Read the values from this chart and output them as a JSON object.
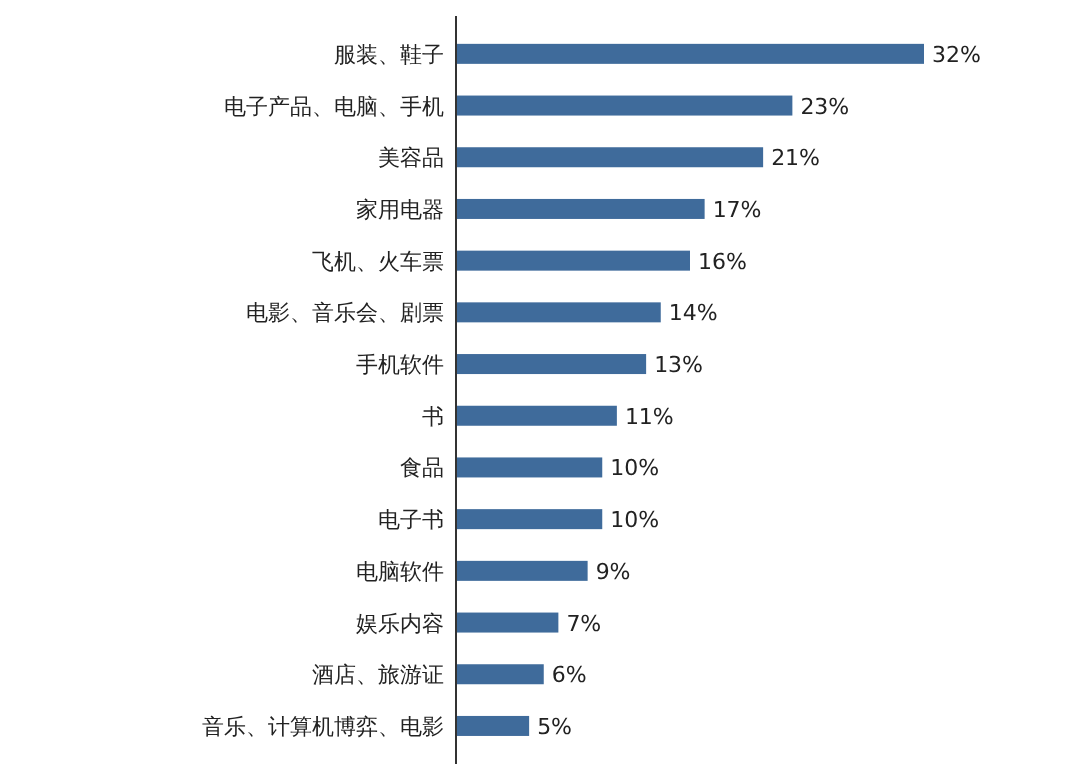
{
  "chart_data": {
    "type": "bar",
    "orientation": "horizontal",
    "color": "#3f6b9b",
    "categories": [
      "服装、鞋子",
      "电子产品、电脑、手机",
      "美容品",
      "家用电器",
      "飞机、火车票",
      "电影、音乐会、剧票",
      "手机软件",
      "书",
      "食品",
      "电子书",
      "电脑软件",
      "娱乐内容",
      "酒店、旅游证",
      "音乐、计算机博弈、电影"
    ],
    "values": [
      32,
      23,
      21,
      17,
      16,
      14,
      13,
      11,
      10,
      10,
      9,
      7,
      6,
      5
    ],
    "value_labels": [
      "32%",
      "23%",
      "21%",
      "17%",
      "16%",
      "14%",
      "13%",
      "11%",
      "10%",
      "10%",
      "9%",
      "7%",
      "6%",
      "5%"
    ]
  }
}
